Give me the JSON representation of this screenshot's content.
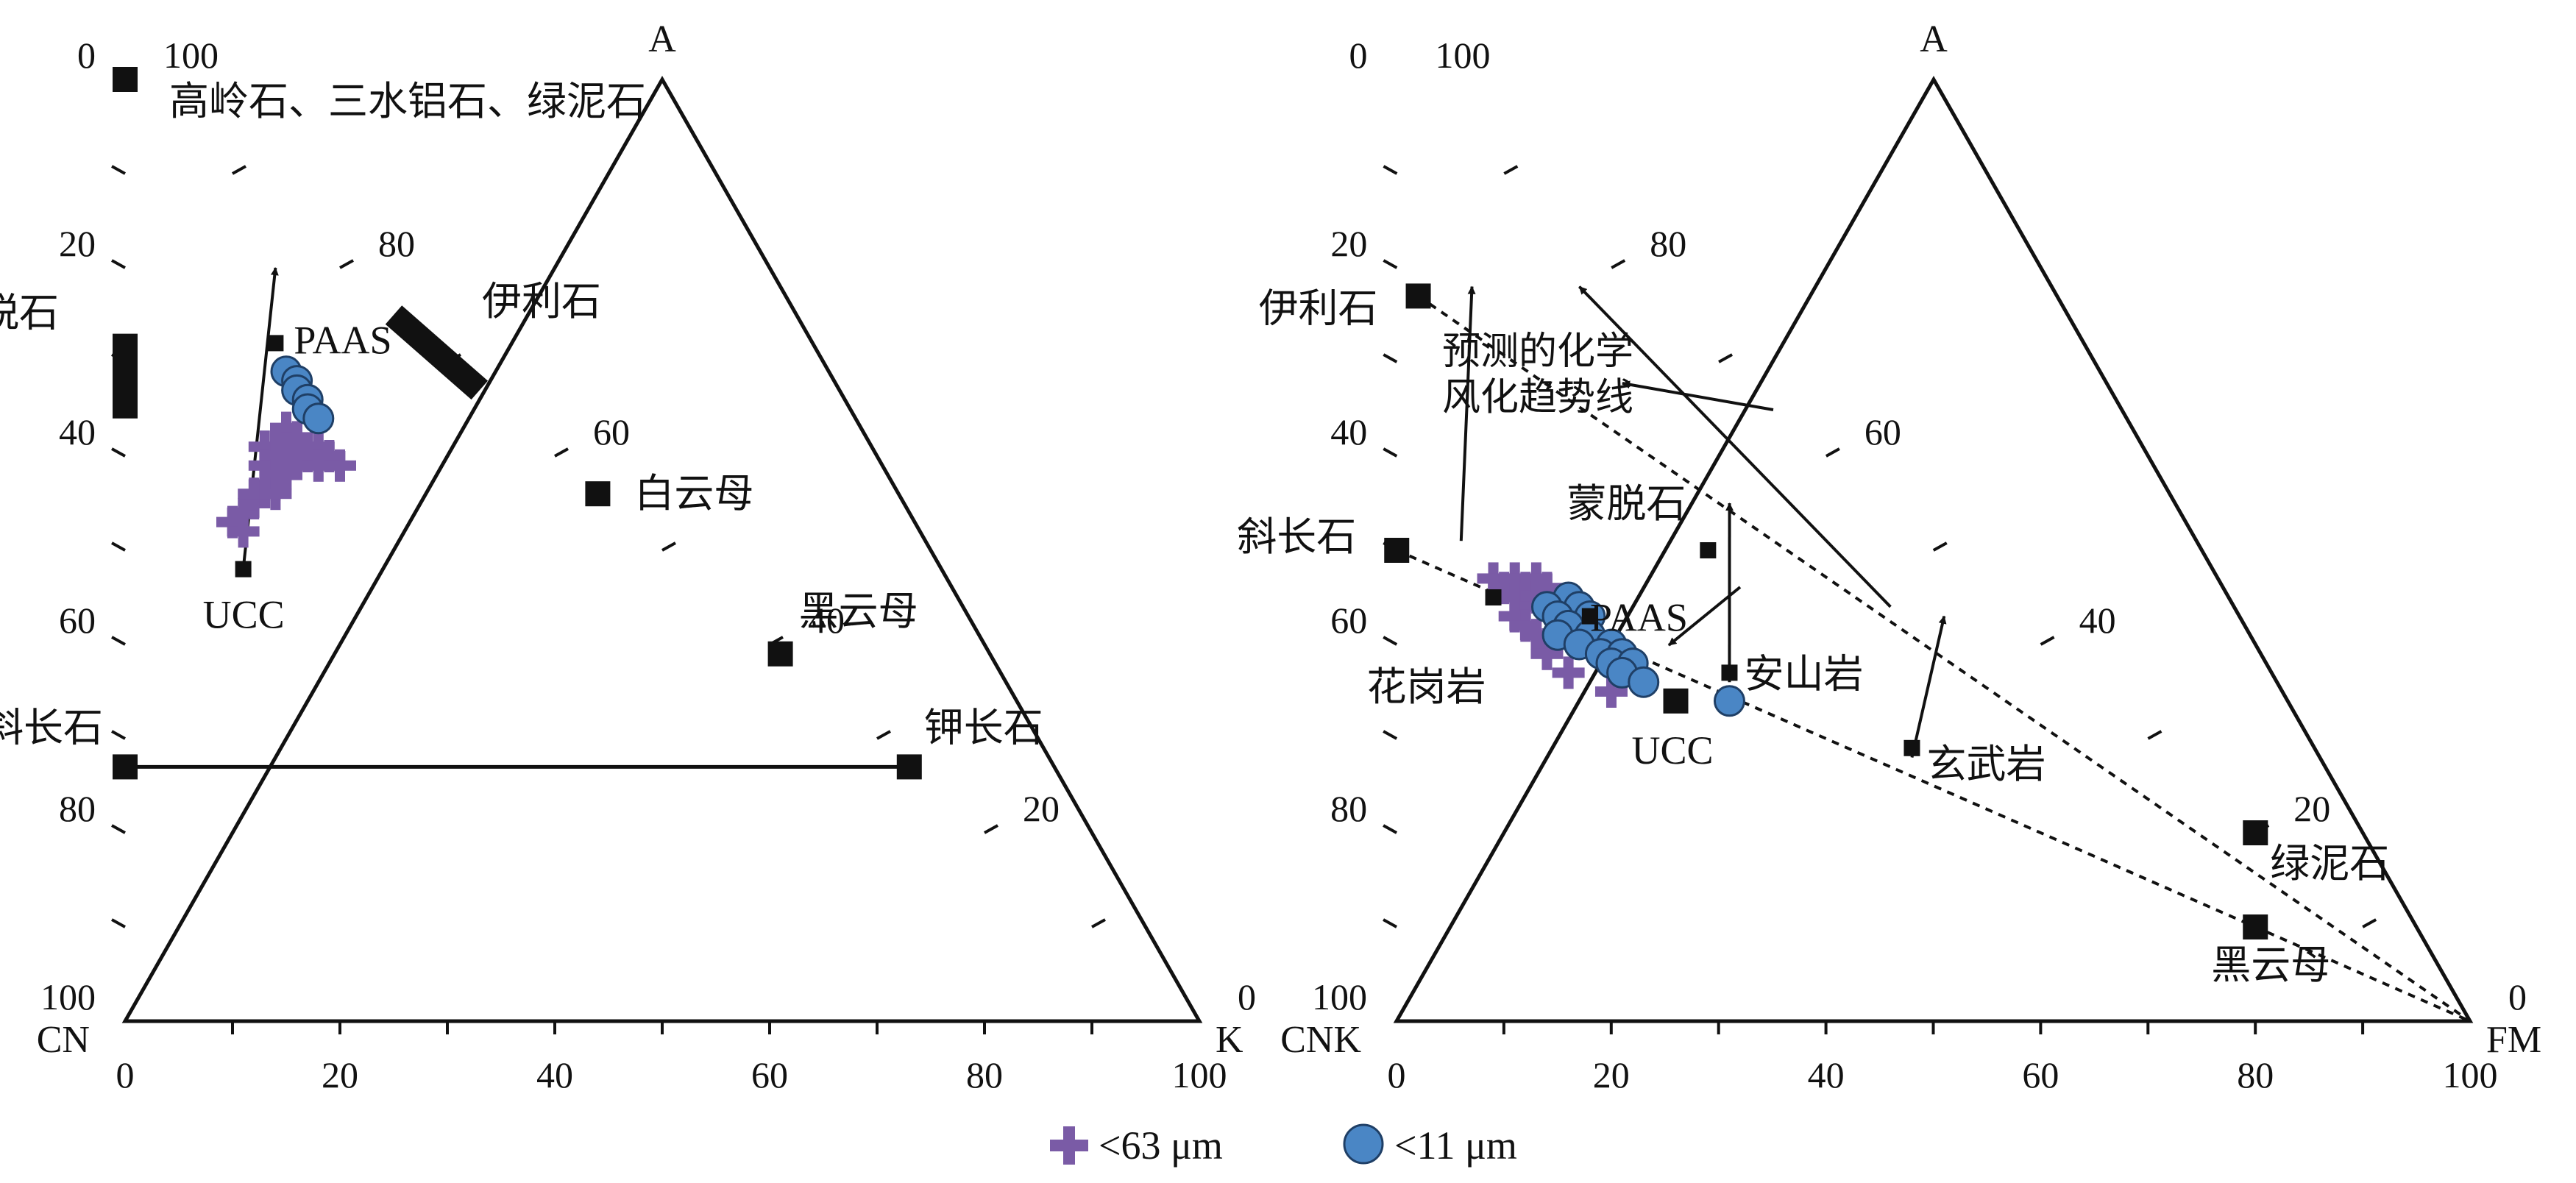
{
  "colors": {
    "plus_marker": "#7a5ba6",
    "circle_marker": "#4a86c5",
    "circle_edge": "#1f3f66",
    "line": "#111111"
  },
  "legend": {
    "plus_label": "<63 μm",
    "circle_label": "<11 μm"
  },
  "chart_data": [
    {
      "type": "scatter",
      "subtype": "ternary",
      "corners": {
        "top": "A",
        "left": "CN",
        "right": "K"
      },
      "tick_labels": {
        "bottom": [
          "0",
          "20",
          "40",
          "60",
          "80",
          "100"
        ],
        "left": [
          "0",
          "20",
          "40",
          "60",
          "80",
          "100"
        ],
        "right": [
          "0",
          "20",
          "40",
          "60",
          "80",
          "100"
        ]
      },
      "reference_points": [
        {
          "label": "高岭石、三水铝石、绿泥石",
          "A": 100,
          "K": 0
        },
        {
          "label": "伊利石",
          "A": 75,
          "K": 25,
          "range_to": {
            "A": 67,
            "K": 33
          }
        },
        {
          "label": "蒙脱石",
          "A": 73,
          "K": 0,
          "range_to": {
            "A": 64,
            "K": 0
          }
        },
        {
          "label": "白云母",
          "A": 56,
          "K": 44
        },
        {
          "label": "黑云母",
          "A": 39,
          "K": 61
        },
        {
          "label": "钾长石",
          "A": 27,
          "K": 73
        },
        {
          "label": "斜长石",
          "A": 27,
          "K": 0
        },
        {
          "label": "PAAS",
          "A": 72,
          "K": 14
        },
        {
          "label": "UCC",
          "A": 48,
          "K": 11
        }
      ],
      "series": [
        {
          "name": "<63 μm",
          "marker": "plus",
          "points": [
            {
              "A": 53,
              "K": 10
            },
            {
              "A": 52,
              "K": 11
            },
            {
              "A": 54,
              "K": 11
            },
            {
              "A": 55,
              "K": 12
            },
            {
              "A": 56,
              "K": 12
            },
            {
              "A": 57,
              "K": 13
            },
            {
              "A": 57,
              "K": 14
            },
            {
              "A": 58,
              "K": 15
            },
            {
              "A": 59,
              "K": 15
            },
            {
              "A": 60,
              "K": 15
            },
            {
              "A": 61,
              "K": 15
            },
            {
              "A": 62,
              "K": 15
            },
            {
              "A": 61,
              "K": 13
            },
            {
              "A": 60,
              "K": 14
            },
            {
              "A": 59,
              "K": 13
            },
            {
              "A": 58,
              "K": 14
            },
            {
              "A": 56,
              "K": 14
            },
            {
              "A": 63,
              "K": 15
            },
            {
              "A": 62,
              "K": 16
            },
            {
              "A": 60,
              "K": 17
            },
            {
              "A": 61,
              "K": 18
            },
            {
              "A": 59,
              "K": 18
            },
            {
              "A": 60,
              "K": 19
            },
            {
              "A": 59,
              "K": 20
            },
            {
              "A": 61,
              "K": 16
            }
          ]
        },
        {
          "name": "<11 μm",
          "marker": "circle",
          "points": [
            {
              "A": 69,
              "K": 15
            },
            {
              "A": 68,
              "K": 16
            },
            {
              "A": 67,
              "K": 16
            },
            {
              "A": 66,
              "K": 17
            },
            {
              "A": 65,
              "K": 17
            },
            {
              "A": 64,
              "K": 18
            }
          ]
        }
      ],
      "lines": [
        {
          "from": "斜长石",
          "to": "钾长石",
          "style": "solid"
        },
        {
          "from": {
            "A": 48,
            "K": 11
          },
          "to": {
            "A": 80,
            "K": 14
          },
          "style": "arrow"
        }
      ]
    },
    {
      "type": "scatter",
      "subtype": "ternary",
      "corners": {
        "top": "A",
        "left": "CNK",
        "right": "FM"
      },
      "tick_labels": {
        "bottom": [
          "0",
          "20",
          "40",
          "60",
          "80",
          "100"
        ],
        "left": [
          "0",
          "20",
          "40",
          "60",
          "80",
          "100"
        ],
        "right": [
          "0",
          "20",
          "40",
          "60",
          "80",
          "100"
        ]
      },
      "reference_points": [
        {
          "label": "伊利石",
          "A": 77,
          "FM": 2
        },
        {
          "label": "斜长石",
          "A": 50,
          "FM": 0
        },
        {
          "label": "蒙脱石",
          "A": 50,
          "FM": 29
        },
        {
          "label": "PAAS",
          "A": 43,
          "FM": 18
        },
        {
          "label": "花岗岩",
          "A": 45,
          "FM": 9
        },
        {
          "label": "安山岩",
          "A": 37,
          "FM": 31
        },
        {
          "label": "UCC",
          "A": 34,
          "FM": 26
        },
        {
          "label": "玄武岩",
          "A": 29,
          "FM": 48
        },
        {
          "label": "绿泥石",
          "A": 20,
          "FM": 80
        },
        {
          "label": "黑云母",
          "A": 10,
          "FM": 80
        }
      ],
      "annotation": "预测的化学\n风化趋势线",
      "series": [
        {
          "name": "<63 μm",
          "marker": "plus",
          "points": [
            {
              "A": 47,
              "FM": 9
            },
            {
              "A": 47,
              "FM": 11
            },
            {
              "A": 47,
              "FM": 13
            },
            {
              "A": 46,
              "FM": 10
            },
            {
              "A": 46,
              "FM": 12
            },
            {
              "A": 46,
              "FM": 14
            },
            {
              "A": 45,
              "FM": 11
            },
            {
              "A": 45,
              "FM": 13
            },
            {
              "A": 44,
              "FM": 12
            },
            {
              "A": 43,
              "FM": 11
            },
            {
              "A": 42,
              "FM": 12
            },
            {
              "A": 41,
              "FM": 13
            },
            {
              "A": 40,
              "FM": 14
            },
            {
              "A": 39,
              "FM": 14
            },
            {
              "A": 37,
              "FM": 16
            },
            {
              "A": 35,
              "FM": 20
            }
          ]
        },
        {
          "name": "<11 μm",
          "marker": "circle",
          "points": [
            {
              "A": 45,
              "FM": 16
            },
            {
              "A": 44,
              "FM": 14
            },
            {
              "A": 44,
              "FM": 17
            },
            {
              "A": 43,
              "FM": 15
            },
            {
              "A": 43,
              "FM": 18
            },
            {
              "A": 42,
              "FM": 16
            },
            {
              "A": 41,
              "FM": 15
            },
            {
              "A": 41,
              "FM": 18
            },
            {
              "A": 40,
              "FM": 17
            },
            {
              "A": 40,
              "FM": 20
            },
            {
              "A": 39,
              "FM": 19
            },
            {
              "A": 39,
              "FM": 21
            },
            {
              "A": 38,
              "FM": 20
            },
            {
              "A": 38,
              "FM": 22
            },
            {
              "A": 37,
              "FM": 21
            },
            {
              "A": 36,
              "FM": 23
            },
            {
              "A": 34,
              "FM": 31
            }
          ]
        }
      ],
      "lines": [
        {
          "from": "伊利石",
          "to": {
            "A": 0,
            "FM": 100
          },
          "style": "dashed"
        },
        {
          "from": "斜长石",
          "to": {
            "A": 0,
            "FM": 100
          },
          "style": "dashed"
        }
      ]
    }
  ]
}
